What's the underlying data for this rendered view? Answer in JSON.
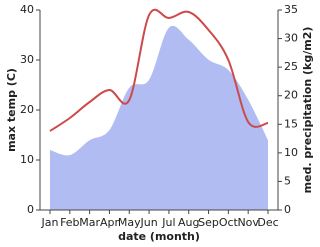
{
  "chart_data": {
    "type": "area-line",
    "x_label": "date (month)",
    "y_label": "max temp (C)",
    "y2_label": "med. precipitation (kg/m2)",
    "categories": [
      "Jan",
      "Feb",
      "Mar",
      "Apr",
      "May",
      "Jun",
      "Jul",
      "Aug",
      "Sep",
      "Oct",
      "Nov",
      "Dec"
    ],
    "ylim": [
      0,
      40
    ],
    "yticks": [
      0,
      10,
      20,
      30,
      40
    ],
    "y2lim": [
      0,
      35
    ],
    "y2ticks": [
      0,
      5,
      10,
      15,
      20,
      25,
      30,
      35
    ],
    "series": [
      {
        "name": "med. precipitation",
        "color": "#b0bcf2",
        "axis": "y2",
        "values": [
          10.5,
          9.6,
          12.2,
          14,
          21.4,
          22.8,
          31.9,
          29.8,
          26.3,
          24.5,
          19.3,
          12.2
        ]
      },
      {
        "name": "max temp",
        "color": "#cc4a4a",
        "values": [
          15.8,
          18.4,
          21.6,
          24,
          22,
          39,
          38.4,
          39.6,
          36,
          30,
          17.6,
          17.4
        ]
      }
    ]
  }
}
